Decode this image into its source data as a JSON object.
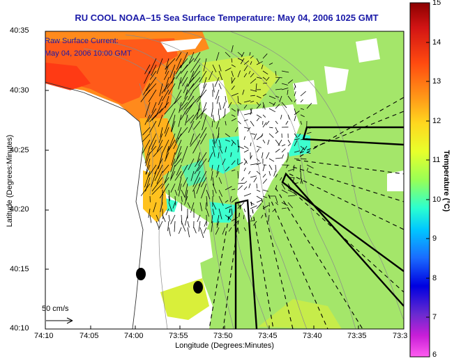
{
  "title": "RU COOL  NOAA–15  Sea Surface Temperature:  May 04, 2006 1025 GMT",
  "axes": {
    "ylabel": "Latitude (Degrees:Minutes)",
    "xlabel": "Longitude (Degrees:Minutes)",
    "y_ticks": [
      "40:35",
      "40:30",
      "40:25",
      "40:20",
      "40:15",
      "40:10"
    ],
    "x_ticks": [
      "74:10",
      "74:05",
      "74:00",
      "73:55",
      "73:50",
      "73:45",
      "73:40",
      "73:35",
      "73:3"
    ]
  },
  "annotation": {
    "line1": "Raw Surface Current:",
    "line2": "May 04, 2006 10:00 GMT"
  },
  "scale_label": "50 cm/s",
  "colorbar": {
    "label": "Temperature (°C)",
    "ticks": [
      "15",
      "14",
      "13",
      "12",
      "11",
      "10",
      "9",
      "8",
      "7",
      "6"
    ],
    "stops": [
      "#8b0000",
      "#d21414",
      "#ff4a10",
      "#ff9a18",
      "#ffd71f",
      "#e8ff2b",
      "#99ff55",
      "#2bffd0",
      "#00c8ff",
      "#1a6cff",
      "#0000e0",
      "#6a2bd0",
      "#c81ed8",
      "#ff5cf0"
    ]
  },
  "colors": {
    "land": "#ffffff",
    "warm": "#ff5a1a",
    "cool": "#9ee36a",
    "cyan": "#3dffcf"
  }
}
